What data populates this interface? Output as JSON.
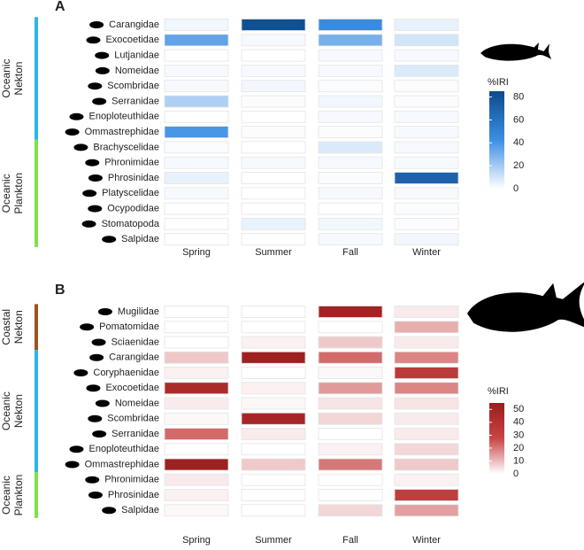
{
  "chart_data": [
    {
      "type": "heatmap",
      "panel": "A",
      "categories": [
        "Spring",
        "Summer",
        "Fall",
        "Winter"
      ],
      "rows": [
        "Carangidae",
        "Exocoetidae",
        "Lutjanidae",
        "Nomeidae",
        "Scombridae",
        "Serranidae",
        "Enoploteuthidae",
        "Ommastrephidae",
        "Brachyscelidae",
        "Phronimidae",
        "Phrosinidae",
        "Platyscelidae",
        "Ocypodidae",
        "Stomatopoda",
        "Salpidae"
      ],
      "values": [
        [
          3,
          82,
          45,
          5
        ],
        [
          35,
          2,
          30,
          10
        ],
        [
          0,
          0,
          2,
          2
        ],
        [
          2,
          2,
          2,
          8
        ],
        [
          2,
          3,
          1,
          1
        ],
        [
          18,
          1,
          3,
          1
        ],
        [
          0,
          0,
          2,
          2
        ],
        [
          40,
          1,
          1,
          2
        ],
        [
          1,
          0,
          8,
          2
        ],
        [
          2,
          2,
          2,
          2
        ],
        [
          5,
          0,
          1,
          70
        ],
        [
          2,
          0,
          2,
          2
        ],
        [
          0,
          0,
          0,
          1
        ],
        [
          0,
          5,
          3,
          1
        ],
        [
          0,
          0,
          2,
          3
        ]
      ],
      "groups": [
        {
          "label": [
            "Oceanic",
            "Nekton"
          ],
          "size": 8,
          "color": "#29b6e8"
        },
        {
          "label": [
            "Oceanic",
            "Plankton"
          ],
          "size": 7,
          "color": "#7ee04a"
        }
      ],
      "colorbar": {
        "title": "%IRI",
        "lim": [
          0,
          85
        ],
        "ticks": [
          0,
          20,
          40,
          60,
          80
        ],
        "colors": [
          "#ffffff",
          "#3d8fe3",
          "#0b4a8c"
        ]
      }
    },
    {
      "type": "heatmap",
      "panel": "B",
      "categories": [
        "Spring",
        "Summer",
        "Fall",
        "Winter"
      ],
      "rows": [
        "Mugilidae",
        "Pomatomidae",
        "Sciaenidae",
        "Carangidae",
        "Coryphaenidae",
        "Exocoetidae",
        "Nomeidae",
        "Scombridae",
        "Serranidae",
        "Enoploteuthidae",
        "Ommastrephidae",
        "Phronimidae",
        "Phrosinidae",
        "Salpidae"
      ],
      "values": [
        [
          0,
          0,
          50,
          3
        ],
        [
          0,
          0,
          0,
          12
        ],
        [
          0,
          2,
          8,
          3
        ],
        [
          8,
          52,
          22,
          18
        ],
        [
          2,
          0,
          1,
          35
        ],
        [
          45,
          2,
          15,
          18
        ],
        [
          3,
          1,
          4,
          4
        ],
        [
          1,
          48,
          6,
          3
        ],
        [
          22,
          3,
          0,
          3
        ],
        [
          0,
          0,
          2,
          6
        ],
        [
          52,
          8,
          20,
          8
        ],
        [
          3,
          0,
          0,
          2
        ],
        [
          2,
          0,
          0,
          32
        ],
        [
          1,
          0,
          6,
          14
        ]
      ],
      "groups": [
        {
          "label": [
            "Coastal",
            "Nekton"
          ],
          "size": 3,
          "color": "#a0521a"
        },
        {
          "label": [
            "Oceanic",
            "Nekton"
          ],
          "size": 8,
          "color": "#29b6e8"
        },
        {
          "label": [
            "Oceanic",
            "Plankton"
          ],
          "size": 3,
          "color": "#7ee04a"
        }
      ],
      "colorbar": {
        "title": "%IRI",
        "lim": [
          0,
          55
        ],
        "ticks": [
          0,
          10,
          20,
          30,
          40,
          50
        ],
        "colors": [
          "#ffffff",
          "#c84545",
          "#9a1c1c"
        ]
      }
    }
  ]
}
